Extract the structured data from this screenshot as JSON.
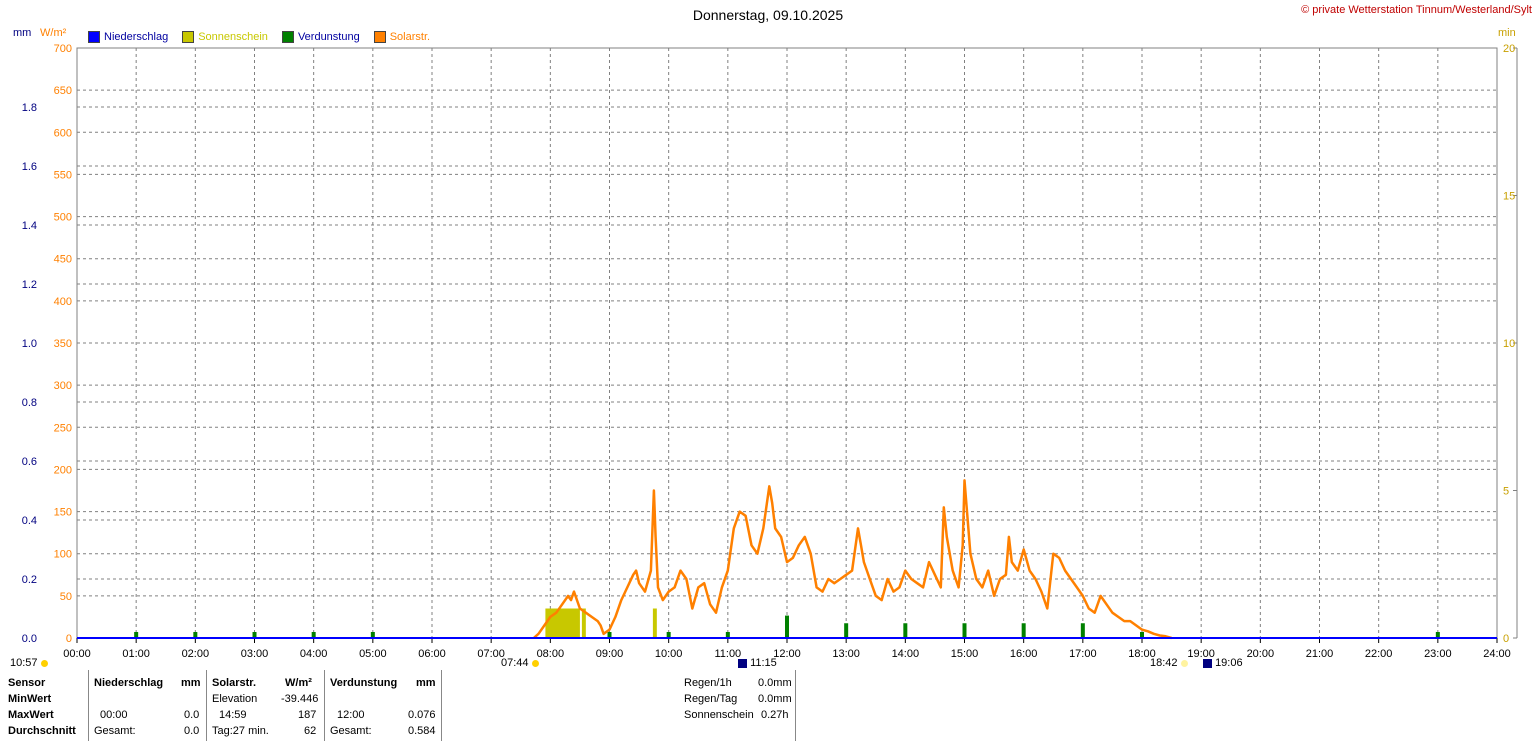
{
  "title": "Donnerstag, 09.10.2025",
  "copyright": "© private Wetterstation Tinnum/Westerland/Sylt",
  "legend": [
    {
      "label": "Niederschlag",
      "color": "#0000ff",
      "text_color": "#0000a0"
    },
    {
      "label": "Sonnenschein",
      "color": "#c8c800",
      "text_color": "#c8c800"
    },
    {
      "label": "Verdunstung",
      "color": "#008000",
      "text_color": "#0000a0"
    },
    {
      "label": "Solarstr.",
      "color": "#ff8000",
      "text_color": "#ff8000"
    }
  ],
  "units": {
    "mm": "mm",
    "wm2": "W/m²",
    "min": "min"
  },
  "colors": {
    "solar": "#ff8000",
    "sunshine": "#c8c800",
    "evap": "#008000",
    "rain": "#0000ff",
    "grid": "#808080",
    "axis_blue": "#000080"
  },
  "chart_data": {
    "type": "line",
    "x_range": [
      "00:00",
      "24:00"
    ],
    "x_tick_labels": [
      "00:00",
      "01:00",
      "02:00",
      "03:00",
      "04:00",
      "05:00",
      "06:00",
      "07:00",
      "08:00",
      "09:00",
      "10:00",
      "11:00",
      "12:00",
      "13:00",
      "14:00",
      "15:00",
      "16:00",
      "17:00",
      "18:00",
      "19:00",
      "20:00",
      "21:00",
      "22:00",
      "23:00",
      "24:00"
    ],
    "y_left_mm": {
      "range": [
        0,
        2.0
      ],
      "ticks": [
        "0.0",
        "0.2",
        "0.4",
        "0.6",
        "0.8",
        "1.0",
        "1.2",
        "1.4",
        "1.6",
        "1.8"
      ]
    },
    "y_left_wm2": {
      "range": [
        0,
        700
      ],
      "ticks": [
        "0",
        "50",
        "100",
        "150",
        "200",
        "250",
        "300",
        "350",
        "400",
        "450",
        "500",
        "550",
        "600",
        "650",
        "700"
      ]
    },
    "y_right_min": {
      "range": [
        0,
        20
      ],
      "ticks": [
        "0",
        "5",
        "10",
        "15",
        "20"
      ]
    },
    "series": [
      {
        "name": "Solarstr.",
        "axis": "wm2",
        "x_hours": [
          7.72,
          7.8,
          7.9,
          8.0,
          8.1,
          8.2,
          8.3,
          8.35,
          8.4,
          8.5,
          8.6,
          8.7,
          8.8,
          8.85,
          8.9,
          9.0,
          9.1,
          9.2,
          9.3,
          9.4,
          9.45,
          9.5,
          9.6,
          9.7,
          9.75,
          9.78,
          9.82,
          9.9,
          10.0,
          10.1,
          10.2,
          10.3,
          10.4,
          10.5,
          10.6,
          10.7,
          10.8,
          10.9,
          11.0,
          11.1,
          11.2,
          11.3,
          11.4,
          11.5,
          11.6,
          11.7,
          11.75,
          11.8,
          11.9,
          12.0,
          12.1,
          12.2,
          12.3,
          12.4,
          12.5,
          12.6,
          12.7,
          12.8,
          12.9,
          13.0,
          13.1,
          13.2,
          13.25,
          13.3,
          13.4,
          13.5,
          13.6,
          13.7,
          13.8,
          13.9,
          14.0,
          14.1,
          14.2,
          14.3,
          14.4,
          14.5,
          14.6,
          14.65,
          14.7,
          14.8,
          14.9,
          14.97,
          15.0,
          15.1,
          15.2,
          15.3,
          15.4,
          15.5,
          15.6,
          15.7,
          15.75,
          15.8,
          15.9,
          16.0,
          16.1,
          16.2,
          16.3,
          16.4,
          16.5,
          16.6,
          16.7,
          16.8,
          16.9,
          17.0,
          17.1,
          17.2,
          17.3,
          17.4,
          17.5,
          17.6,
          17.7,
          17.8,
          17.9,
          18.0,
          18.1,
          18.2,
          18.3,
          18.4,
          18.5
        ],
        "values": [
          0,
          5,
          15,
          25,
          30,
          40,
          50,
          45,
          55,
          35,
          30,
          25,
          20,
          15,
          5,
          10,
          25,
          45,
          60,
          75,
          80,
          65,
          55,
          80,
          175,
          120,
          60,
          45,
          55,
          60,
          80,
          70,
          35,
          60,
          65,
          40,
          30,
          60,
          80,
          130,
          150,
          145,
          110,
          100,
          130,
          180,
          160,
          130,
          120,
          90,
          95,
          110,
          120,
          100,
          60,
          55,
          70,
          65,
          70,
          75,
          80,
          130,
          110,
          90,
          70,
          50,
          45,
          70,
          55,
          60,
          80,
          70,
          65,
          60,
          90,
          75,
          60,
          155,
          120,
          80,
          60,
          110,
          187,
          100,
          70,
          60,
          80,
          50,
          70,
          75,
          120,
          90,
          80,
          105,
          80,
          70,
          55,
          35,
          100,
          95,
          80,
          70,
          60,
          50,
          35,
          30,
          50,
          40,
          30,
          25,
          20,
          20,
          15,
          10,
          8,
          5,
          3,
          2,
          0
        ]
      },
      {
        "name": "Sonnenschein",
        "axis": "min",
        "bars": [
          {
            "start": "07:55",
            "end": "08:30",
            "value": 1.0
          },
          {
            "start": "08:32",
            "end": "08:36",
            "value": 1.0
          },
          {
            "start": "09:44",
            "end": "09:48",
            "value": 1.0
          }
        ]
      },
      {
        "name": "Verdunstung",
        "axis": "mm",
        "points": [
          {
            "x": "01:00",
            "value": 0.003
          },
          {
            "x": "02:00",
            "value": 0.003
          },
          {
            "x": "03:00",
            "value": 0.003
          },
          {
            "x": "04:00",
            "value": 0.003
          },
          {
            "x": "05:00",
            "value": 0.003
          },
          {
            "x": "09:00",
            "value": 0.003
          },
          {
            "x": "10:00",
            "value": 0.003
          },
          {
            "x": "11:00",
            "value": 0.003
          },
          {
            "x": "12:00",
            "value": 0.076
          },
          {
            "x": "13:00",
            "value": 0.05
          },
          {
            "x": "14:00",
            "value": 0.05
          },
          {
            "x": "15:00",
            "value": 0.05
          },
          {
            "x": "16:00",
            "value": 0.05
          },
          {
            "x": "17:00",
            "value": 0.05
          },
          {
            "x": "18:00",
            "value": 0.003
          },
          {
            "x": "23:00",
            "value": 0.003
          }
        ]
      },
      {
        "name": "Niederschlag",
        "axis": "mm",
        "values": []
      }
    ],
    "grid": true,
    "legend_position": "top-left"
  },
  "markers": {
    "left_time": "10:57",
    "sunrise": "07:44",
    "moon1": "11:15",
    "sunset": "18:42",
    "moon2": "19:06"
  },
  "table": {
    "sensor": "Sensor",
    "minwert": "MinWert",
    "maxwert": "MaxWert",
    "durchschnitt": "Durchschnitt",
    "niederschlag": "Niederschlag",
    "mm": "mm",
    "nied_max_time": "00:00",
    "nied_max_val": "0.0",
    "nied_gesamt_label": "Gesamt:",
    "nied_gesamt_val": "0.0",
    "solar": "Solarstr.",
    "wm2": "W/m²",
    "elevation_label": "Elevation",
    "elevation_val": "-39.446",
    "solar_max_time": "14:59",
    "solar_max_val": "187",
    "solar_tag_label": "Tag:27 min.",
    "solar_avg_val": "62",
    "verdunstung": "Verdunstung",
    "verd_mm": "mm",
    "verd_max_time": "12:00",
    "verd_max_val": "0.076",
    "verd_gesamt_label": "Gesamt:",
    "verd_gesamt_val": "0.584",
    "regen1h_label": "Regen/1h",
    "regen1h_val": "0.0mm",
    "regentag_label": "Regen/Tag",
    "regentag_val": "0.0mm",
    "sonnenschein_label": "Sonnenschein",
    "sonnenschein_val": "0.27h"
  }
}
